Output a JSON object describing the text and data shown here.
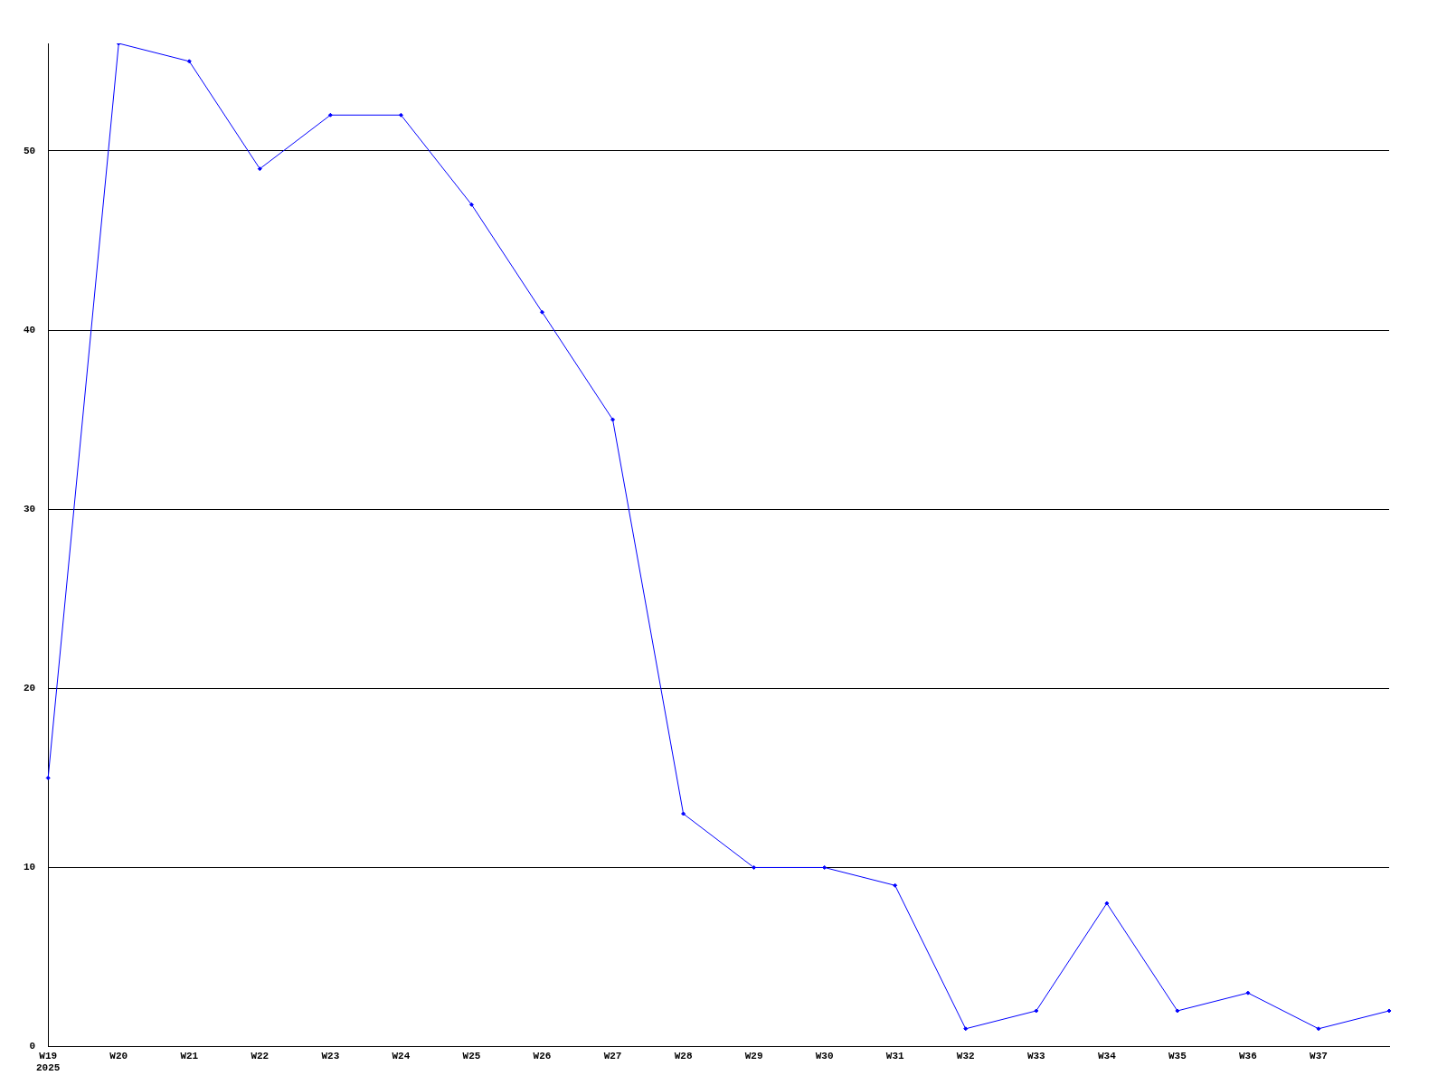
{
  "chart_data": {
    "type": "line",
    "categories": [
      "W19\n2025",
      "W20",
      "W21",
      "W22",
      "W23",
      "W24",
      "W25",
      "W26",
      "W27",
      "W28",
      "W29",
      "W30",
      "W31",
      "W32",
      "W33",
      "W34",
      "W35",
      "W36",
      "W37",
      null
    ],
    "series": [
      {
        "color": "#0000ff",
        "values": [
          15,
          56,
          55,
          49,
          52,
          52,
          47,
          41,
          35,
          13,
          10,
          10,
          9,
          1,
          2,
          8,
          2,
          3,
          1,
          2
        ]
      }
    ],
    "ylim": [
      0,
      56
    ],
    "yticks": [
      0,
      10,
      20,
      30,
      40,
      50
    ],
    "grid": "y",
    "legend": false,
    "marker": "diamond",
    "line_style": "solid"
  }
}
